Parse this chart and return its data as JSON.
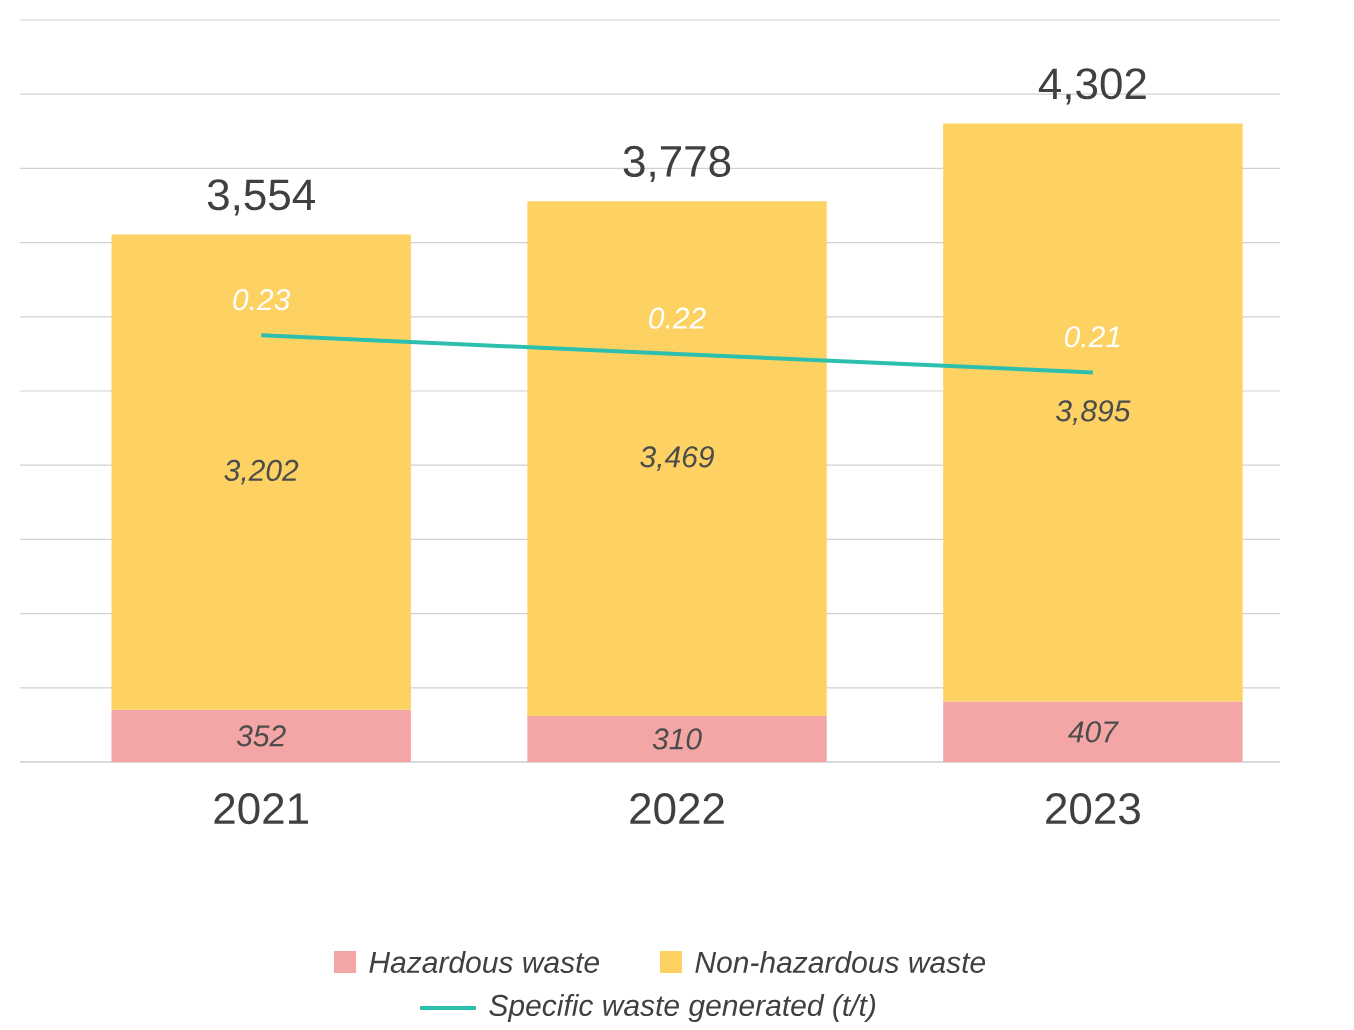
{
  "chart_data": {
    "type": "bar",
    "stacked": true,
    "categories": [
      "2021",
      "2022",
      "2023"
    ],
    "series": [
      {
        "name": "Hazardous waste",
        "color": "#f4a6a6",
        "values": [
          352,
          310,
          407
        ],
        "value_labels": [
          "352",
          "310",
          "407"
        ]
      },
      {
        "name": "Non-hazardous waste",
        "color": "#fdd262",
        "values": [
          3202,
          3469,
          3895
        ],
        "value_labels": [
          "3,202",
          "3,469",
          "3,895"
        ]
      },
      {
        "name": "Specific waste generated (t/t)",
        "type": "line",
        "axis": "y2",
        "color": "#2dbfad",
        "values": [
          0.23,
          0.22,
          0.21
        ],
        "value_labels": [
          "0.23",
          "0.22",
          "0.21"
        ]
      }
    ],
    "totals": [
      "3,554",
      "3,778",
      "4,302"
    ],
    "ylim": [
      0,
      5000
    ],
    "yticks": [
      {
        "value": 0,
        "label": null
      },
      {
        "value": 500,
        "label": null
      },
      {
        "value": 1000,
        "label": null
      },
      {
        "value": 1500,
        "label": null
      },
      {
        "value": 2000,
        "label": null
      },
      {
        "value": 2500,
        "label": null
      },
      {
        "value": 3000,
        "label": null
      },
      {
        "value": 3500,
        "label": null
      },
      {
        "value": 4000,
        "label": null
      },
      {
        "value": 4500,
        "label": null
      },
      {
        "value": 5000,
        "label": null
      }
    ],
    "y2lim": [
      0,
      0.4
    ],
    "grid": "y",
    "tick_labels": "x",
    "legend": "bottom"
  }
}
